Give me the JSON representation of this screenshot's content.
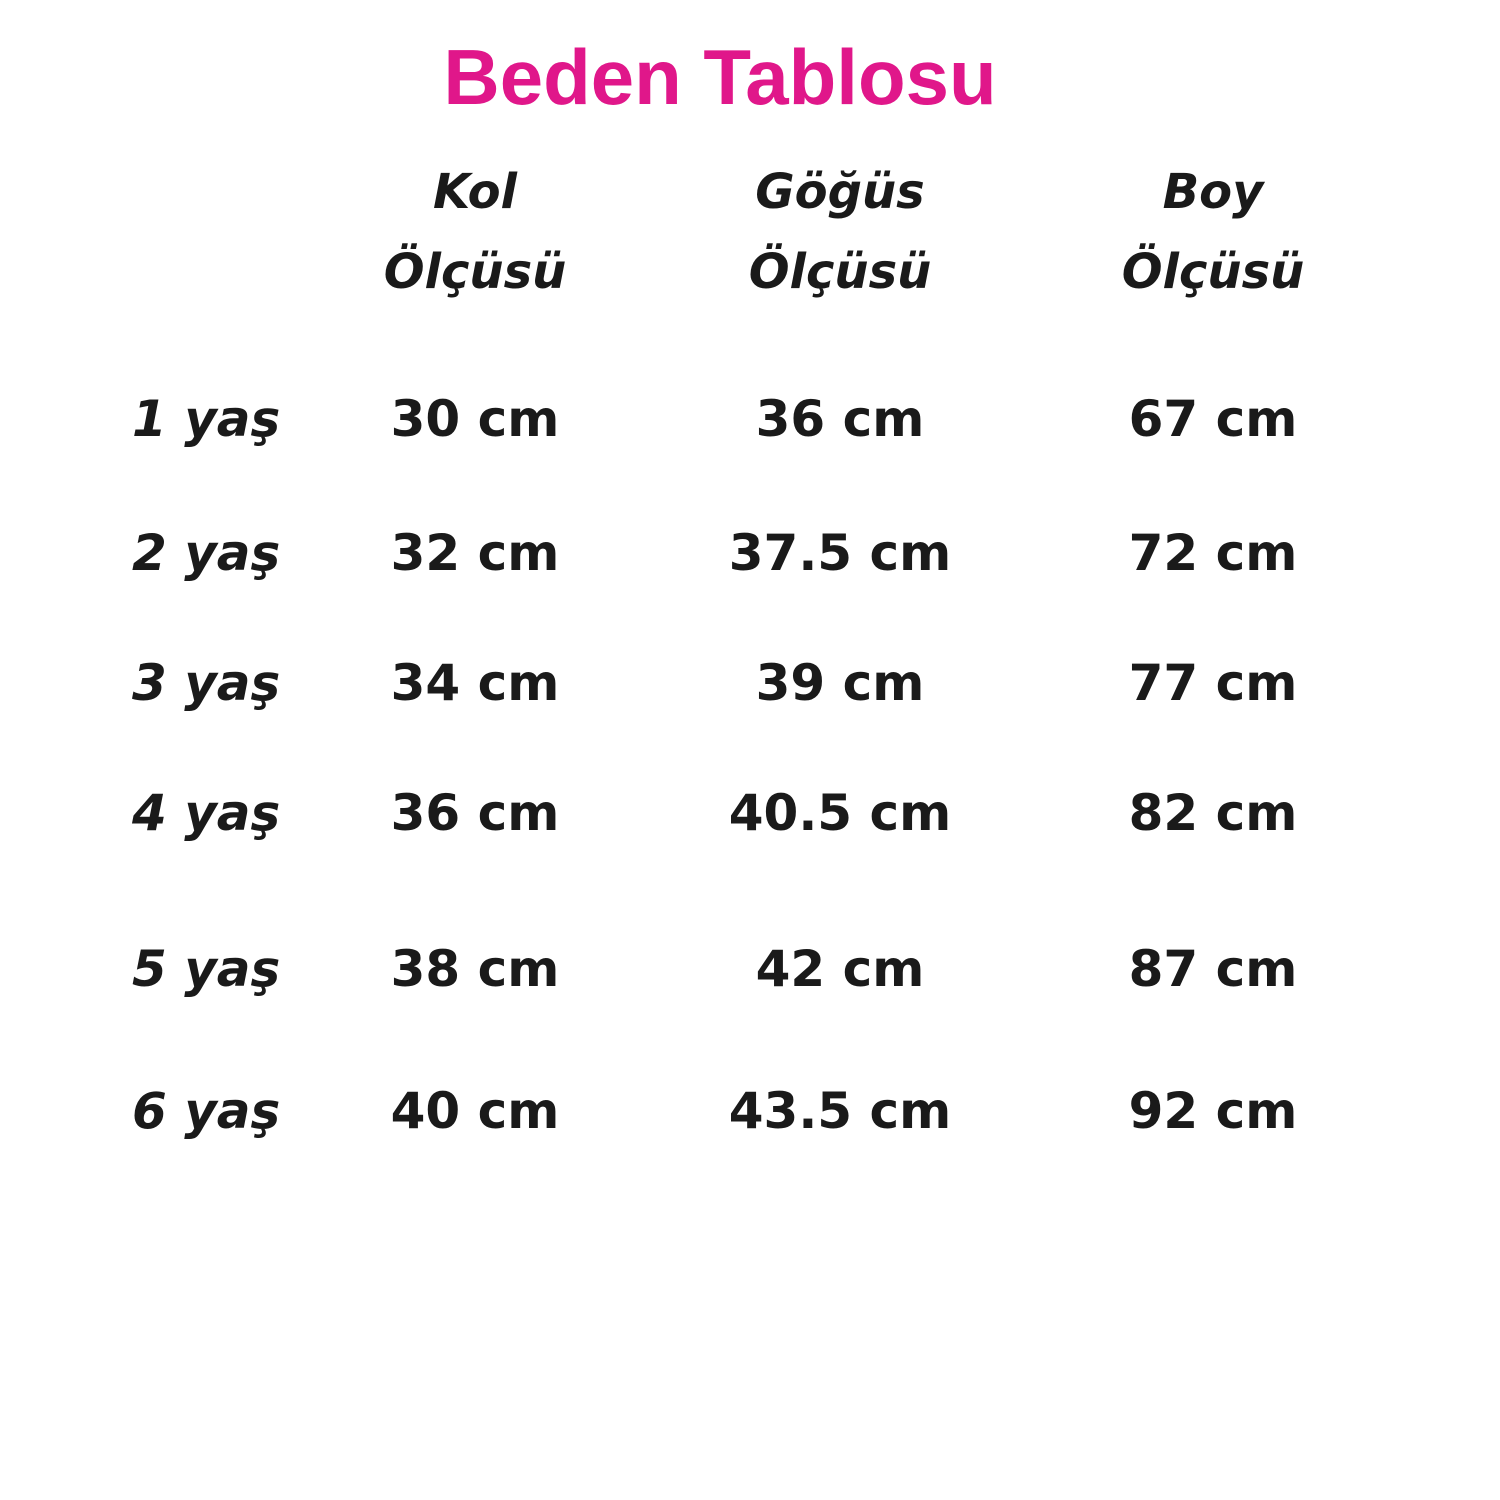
{
  "title": "Beden Tablosu",
  "title_color": "#e0178a",
  "headers": [
    {
      "line1": "Kol",
      "line2": "Ölçüsü"
    },
    {
      "line1": "Göğüs",
      "line2": "Ölçüsü"
    },
    {
      "line1": "Boy",
      "line2": "Ölçüsü"
    }
  ],
  "rows": [
    {
      "age": "1 yaş",
      "kol": "30 cm",
      "gogus": "36 cm",
      "boy": "67 cm"
    },
    {
      "age": "2 yaş",
      "kol": "32 cm",
      "gogus": "37.5 cm",
      "boy": "72 cm"
    },
    {
      "age": "3 yaş",
      "kol": "34 cm",
      "gogus": "39 cm",
      "boy": "77 cm"
    },
    {
      "age": "4 yaş",
      "kol": "36 cm",
      "gogus": "40.5 cm",
      "boy": "82 cm"
    },
    {
      "age": "5 yaş",
      "kol": "38 cm",
      "gogus": "42 cm",
      "boy": "87 cm"
    },
    {
      "age": "6 yaş",
      "kol": "40 cm",
      "gogus": "43.5 cm",
      "boy": "92 cm"
    }
  ]
}
